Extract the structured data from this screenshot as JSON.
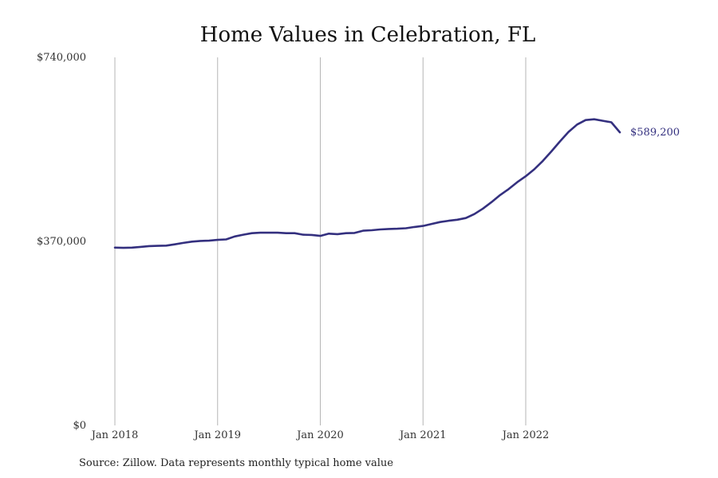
{
  "chart_data": {
    "type": "line",
    "title": "Home Values in Celebration, FL",
    "xlabel": "",
    "ylabel": "",
    "ylim": [
      0,
      740000
    ],
    "yticks": [
      {
        "value": 0,
        "label": "$0"
      },
      {
        "value": 370000,
        "label": "$370,000"
      },
      {
        "value": 740000,
        "label": "$740,000"
      }
    ],
    "x_ticks": [
      {
        "date": "2018-01",
        "label": "Jan 2018"
      },
      {
        "date": "2019-01",
        "label": "Jan 2019"
      },
      {
        "date": "2020-01",
        "label": "Jan 2020"
      },
      {
        "date": "2021-01",
        "label": "Jan 2021"
      },
      {
        "date": "2022-01",
        "label": "Jan 2022"
      }
    ],
    "x_range": [
      "2018-01",
      "2022-12"
    ],
    "grid": {
      "vertical": true,
      "horizontal": false
    },
    "line_color": "#34307f",
    "series": [
      {
        "x": [
          "2018-01",
          "2018-02",
          "2018-03",
          "2018-04",
          "2018-05",
          "2018-06",
          "2018-07",
          "2018-08",
          "2018-09",
          "2018-10",
          "2018-11",
          "2018-12",
          "2019-01",
          "2019-02",
          "2019-03",
          "2019-04",
          "2019-05",
          "2019-06",
          "2019-07",
          "2019-08",
          "2019-09",
          "2019-10",
          "2019-11",
          "2019-12",
          "2020-01",
          "2020-02",
          "2020-03",
          "2020-04",
          "2020-05",
          "2020-06",
          "2020-07",
          "2020-08",
          "2020-09",
          "2020-10",
          "2020-11",
          "2020-12",
          "2021-01",
          "2021-02",
          "2021-03",
          "2021-04",
          "2021-05",
          "2021-06",
          "2021-07",
          "2021-08",
          "2021-09",
          "2021-10",
          "2021-11",
          "2021-12",
          "2022-01",
          "2022-02",
          "2022-03",
          "2022-04",
          "2022-05",
          "2022-06",
          "2022-07",
          "2022-08",
          "2022-09",
          "2022-10",
          "2022-11",
          "2022-12"
        ],
        "values": [
          357500,
          357000,
          357500,
          359000,
          360500,
          361000,
          361500,
          364000,
          367000,
          369500,
          371000,
          371500,
          373000,
          374000,
          380000,
          383500,
          386500,
          387500,
          387500,
          387500,
          386500,
          386500,
          383500,
          383000,
          381000,
          385500,
          384500,
          386500,
          387000,
          391500,
          392500,
          394000,
          395000,
          395500,
          396500,
          399000,
          401000,
          405000,
          409000,
          411500,
          413500,
          417000,
          425000,
          436000,
          449000,
          463000,
          475000,
          489000,
          501000,
          515000,
          532000,
          551000,
          571000,
          590000,
          605000,
          614000,
          615500,
          612500,
          609500,
          589200
        ]
      }
    ],
    "end_label": "$589,200",
    "source": "Source: Zillow. Data represents monthly typical home value"
  }
}
